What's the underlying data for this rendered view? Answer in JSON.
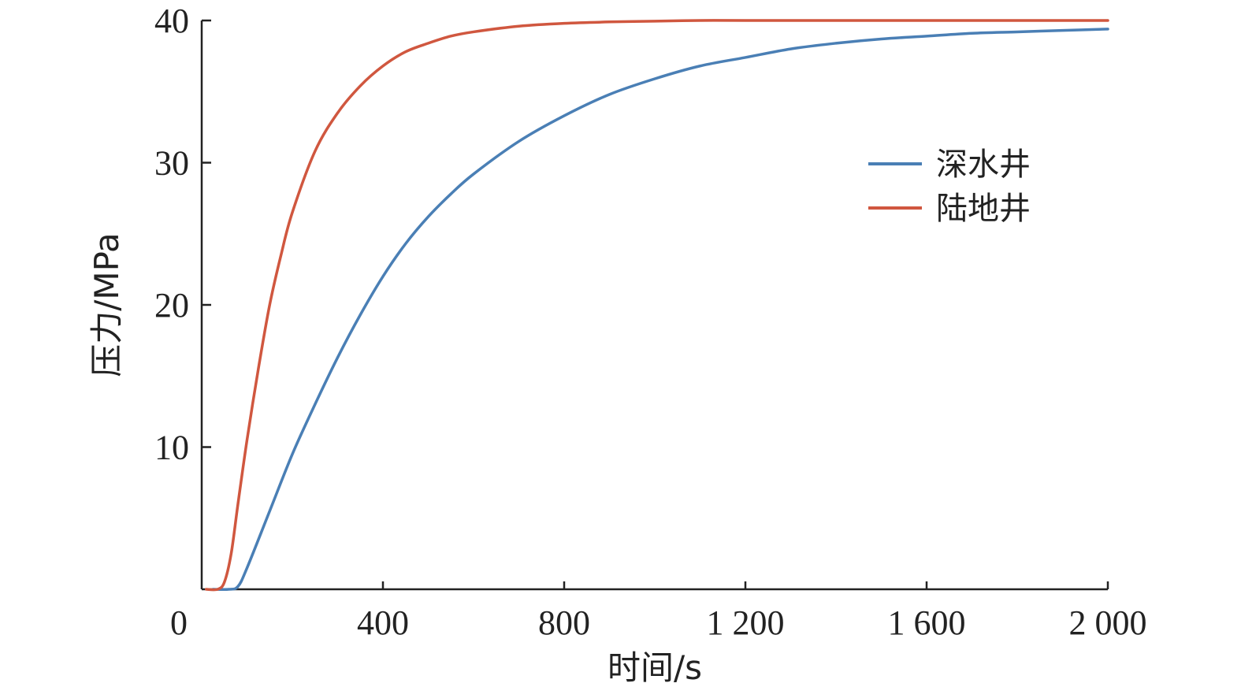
{
  "chart_data": {
    "type": "line",
    "title": "",
    "xlabel": "时间/s",
    "ylabel": "压力/MPa",
    "xlim": [
      0,
      2000
    ],
    "ylim": [
      0,
      40
    ],
    "xticks": [
      {
        "value": 0,
        "label": "0"
      },
      {
        "value": 400,
        "label": "400"
      },
      {
        "value": 800,
        "label": "800"
      },
      {
        "value": 1200,
        "label": "1 200"
      },
      {
        "value": 1600,
        "label": "1 600"
      },
      {
        "value": 2000,
        "label": "2 000"
      }
    ],
    "yticks": [
      {
        "value": 10,
        "label": "10"
      },
      {
        "value": 20,
        "label": "20"
      },
      {
        "value": 30,
        "label": "30"
      },
      {
        "value": 40,
        "label": "40"
      }
    ],
    "grid": false,
    "legend": "right",
    "series": [
      {
        "name": "深水井",
        "color": "#4a7fb5",
        "x": [
          25,
          60,
          80,
          100,
          150,
          200,
          250,
          300,
          350,
          400,
          450,
          500,
          550,
          600,
          700,
          800,
          900,
          1000,
          1100,
          1200,
          1300,
          1400,
          1500,
          1600,
          1700,
          1800,
          1900,
          2000
        ],
        "y": [
          0,
          0,
          0.2,
          1.5,
          5.5,
          9.5,
          13,
          16.3,
          19.3,
          22,
          24.3,
          26.2,
          27.8,
          29.2,
          31.5,
          33.3,
          34.8,
          35.9,
          36.8,
          37.4,
          38.0,
          38.4,
          38.7,
          38.9,
          39.1,
          39.2,
          39.3,
          39.4
        ]
      },
      {
        "name": "陆地井",
        "color": "#d0573f",
        "x": [
          10,
          35,
          50,
          65,
          80,
          100,
          125,
          150,
          175,
          200,
          250,
          300,
          350,
          400,
          450,
          500,
          550,
          600,
          700,
          800,
          900,
          1000,
          1100,
          1200,
          1400,
          1600,
          1800,
          2000
        ],
        "y": [
          0,
          0,
          0.5,
          2.5,
          6,
          10.5,
          15.5,
          20,
          23.5,
          26.5,
          30.8,
          33.5,
          35.4,
          36.8,
          37.8,
          38.4,
          38.9,
          39.2,
          39.6,
          39.8,
          39.9,
          39.95,
          40,
          40,
          40,
          40,
          40,
          40
        ]
      }
    ]
  }
}
